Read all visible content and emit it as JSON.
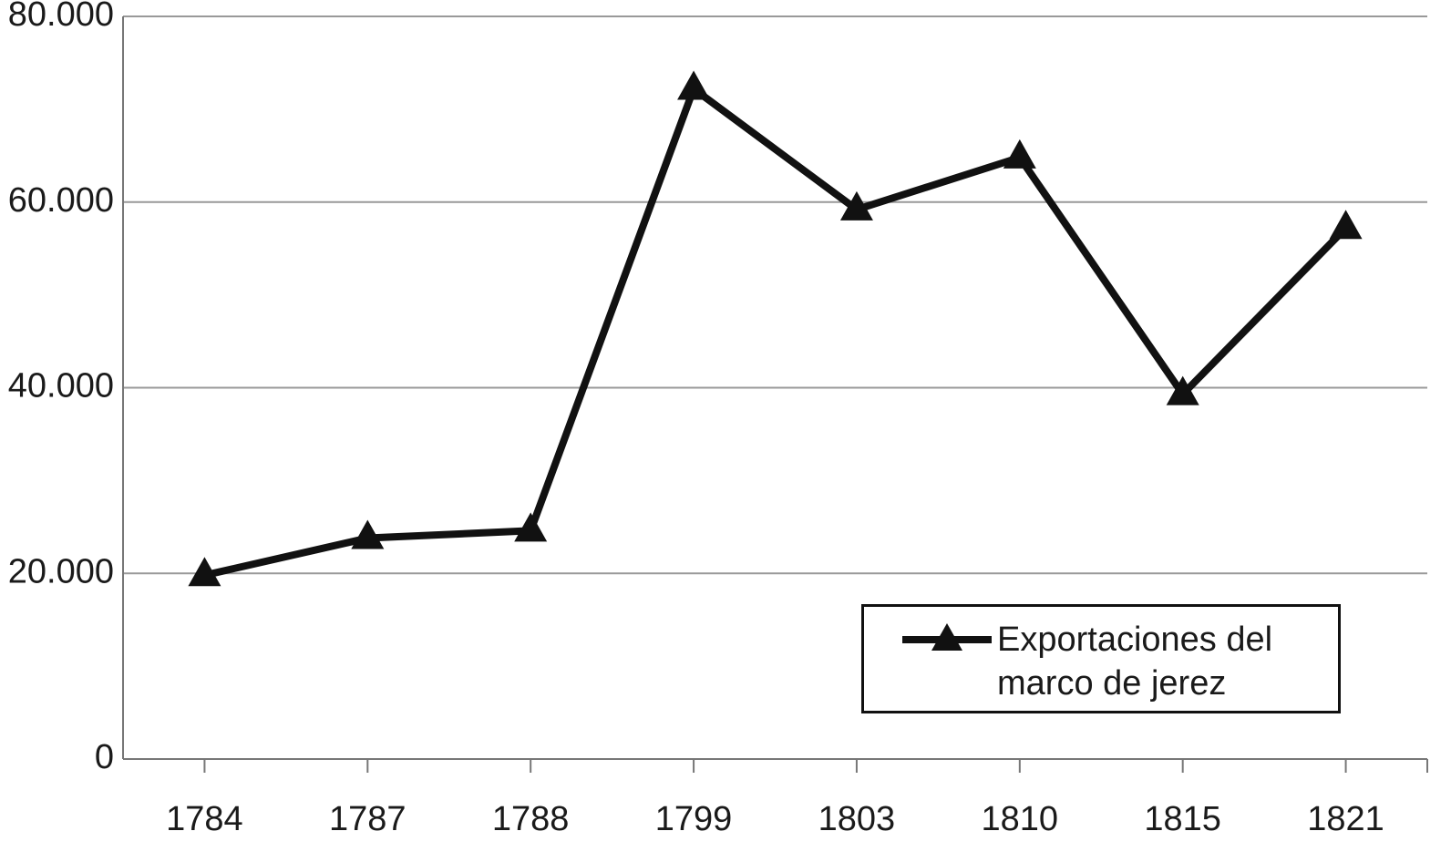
{
  "chart_data": {
    "type": "line",
    "categories": [
      "1784",
      "1787",
      "1788",
      "1799",
      "1803",
      "1810",
      "1815",
      "1821"
    ],
    "series": [
      {
        "name": "Exportaciones del marco de jerez",
        "color": "#111111",
        "values": [
          19800,
          23800,
          24600,
          72200,
          59200,
          64800,
          39300,
          57200
        ]
      }
    ],
    "ylim": [
      0,
      80000
    ],
    "yticks": [
      0,
      {
        "value": 20000,
        "label": "20.000"
      },
      {
        "value": 40000,
        "label": "40.000"
      },
      {
        "value": 60000,
        "label": "60.000"
      },
      {
        "value": 80000,
        "label": "80.000"
      }
    ],
    "grid": true,
    "legend": "lower right",
    "marker": "triangle"
  }
}
